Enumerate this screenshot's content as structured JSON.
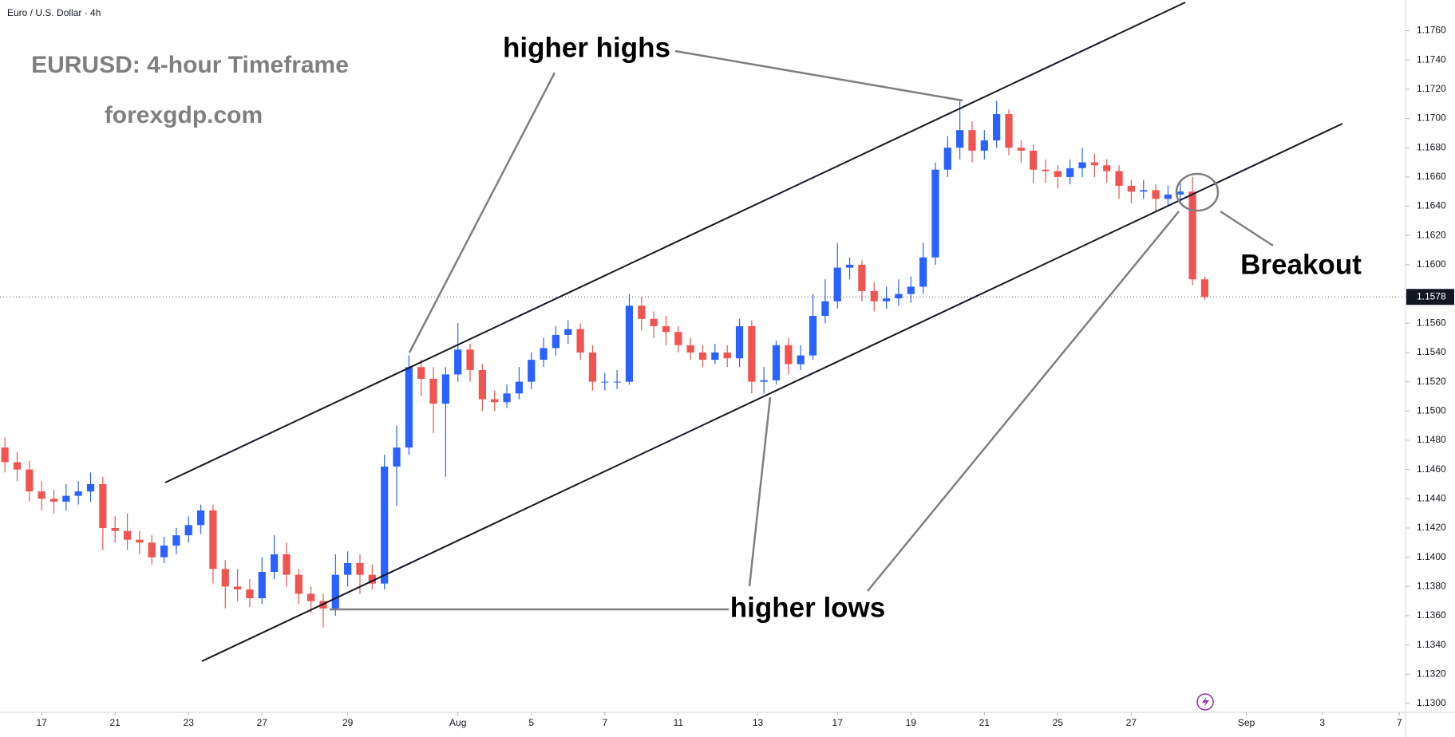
{
  "header": {
    "symbol": "Euro / U.S. Dollar · 4h"
  },
  "chart_data": {
    "type": "candlestick",
    "title": "EURUSD: 4-hour Timeframe",
    "subtitle": "forexgdp.com",
    "annotations": [
      "higher highs",
      "higher lows",
      "Breakout"
    ],
    "up_color": "#2962ff",
    "down_color": "#f05350",
    "last_price": 1.1578,
    "x": [
      0,
      1,
      2,
      3,
      4,
      5,
      6,
      7,
      8,
      9,
      10,
      11,
      12,
      13,
      14,
      15,
      16,
      17,
      18,
      19,
      20,
      21,
      22,
      23,
      24,
      25,
      26,
      27,
      28,
      29,
      30,
      31,
      32,
      33,
      34,
      35,
      36,
      37,
      38,
      39,
      40,
      41,
      42,
      43,
      44,
      45,
      46,
      47,
      48,
      49,
      50,
      51,
      52,
      53,
      54,
      55,
      56,
      57,
      58,
      59,
      60,
      61,
      62,
      63,
      64,
      65,
      66,
      67,
      68,
      69,
      70,
      71,
      72,
      73,
      74,
      75,
      76,
      77,
      78,
      79,
      80,
      81,
      82,
      83,
      84,
      85,
      86,
      87,
      88,
      89,
      90,
      91,
      92,
      93,
      94,
      95,
      96,
      97,
      98
    ],
    "open": [
      1.1475,
      1.1465,
      1.146,
      1.1445,
      1.144,
      1.1438,
      1.1442,
      1.1445,
      1.145,
      1.142,
      1.1418,
      1.1412,
      1.141,
      1.14,
      1.1408,
      1.1415,
      1.1422,
      1.1432,
      1.1392,
      1.138,
      1.1378,
      1.1372,
      1.139,
      1.1402,
      1.1388,
      1.1375,
      1.137,
      1.1365,
      1.1388,
      1.1396,
      1.1388,
      1.1382,
      1.1462,
      1.1475,
      1.153,
      1.1522,
      1.1505,
      1.1525,
      1.1542,
      1.1528,
      1.1508,
      1.1506,
      1.1512,
      1.152,
      1.1535,
      1.1543,
      1.1552,
      1.1556,
      1.154,
      1.152,
      1.152,
      1.152,
      1.1572,
      1.1563,
      1.1558,
      1.1554,
      1.1545,
      1.154,
      1.1535,
      1.154,
      1.1536,
      1.1558,
      1.152,
      1.1521,
      1.1545,
      1.1532,
      1.1538,
      1.1565,
      1.1575,
      1.1598,
      1.16,
      1.1582,
      1.1575,
      1.1577,
      1.158,
      1.1585,
      1.1605,
      1.1665,
      1.168,
      1.1692,
      1.1678,
      1.1685,
      1.1703,
      1.168,
      1.1678,
      1.1665,
      1.1664,
      1.166,
      1.1666,
      1.167,
      1.1668,
      1.1664,
      1.1654,
      1.165,
      1.1651,
      1.1645,
      1.1648,
      1.165,
      1.159
    ],
    "high": [
      1.1482,
      1.1472,
      1.1466,
      1.1452,
      1.1446,
      1.145,
      1.1452,
      1.1458,
      1.1455,
      1.1428,
      1.143,
      1.1418,
      1.1415,
      1.1414,
      1.142,
      1.1428,
      1.1436,
      1.1436,
      1.1398,
      1.1392,
      1.1385,
      1.14,
      1.1415,
      1.141,
      1.1392,
      1.138,
      1.1375,
      1.1402,
      1.1404,
      1.1402,
      1.1395,
      1.147,
      1.149,
      1.1538,
      1.1535,
      1.153,
      1.153,
      1.156,
      1.1546,
      1.1532,
      1.1514,
      1.1518,
      1.153,
      1.154,
      1.155,
      1.1558,
      1.1562,
      1.156,
      1.1545,
      1.1526,
      1.1528,
      1.158,
      1.1578,
      1.1568,
      1.1565,
      1.1558,
      1.155,
      1.1545,
      1.1546,
      1.1545,
      1.1563,
      1.1562,
      1.153,
      1.1548,
      1.155,
      1.1545,
      1.158,
      1.159,
      1.1615,
      1.1605,
      1.1603,
      1.1588,
      1.1585,
      1.159,
      1.1592,
      1.1615,
      1.167,
      1.1688,
      1.1712,
      1.1698,
      1.1692,
      1.1712,
      1.1706,
      1.1685,
      1.1682,
      1.1672,
      1.1668,
      1.1672,
      1.168,
      1.1676,
      1.1672,
      1.1668,
      1.1658,
      1.1658,
      1.1655,
      1.1654,
      1.1658,
      1.166,
      1.1592
    ],
    "low": [
      1.1458,
      1.1452,
      1.1438,
      1.1432,
      1.143,
      1.1432,
      1.1436,
      1.1438,
      1.1405,
      1.141,
      1.1405,
      1.1402,
      1.1395,
      1.1396,
      1.1402,
      1.141,
      1.1416,
      1.1382,
      1.1365,
      1.137,
      1.1366,
      1.1368,
      1.1385,
      1.138,
      1.1368,
      1.1362,
      1.1352,
      1.136,
      1.138,
      1.1375,
      1.1378,
      1.1378,
      1.1435,
      1.147,
      1.151,
      1.1485,
      1.1455,
      1.152,
      1.152,
      1.15,
      1.15,
      1.1502,
      1.1508,
      1.1515,
      1.153,
      1.1538,
      1.1546,
      1.1535,
      1.1514,
      1.1514,
      1.1515,
      1.1518,
      1.1555,
      1.155,
      1.1545,
      1.154,
      1.1535,
      1.153,
      1.1532,
      1.153,
      1.153,
      1.1512,
      1.1512,
      1.1518,
      1.1525,
      1.1528,
      1.1535,
      1.156,
      1.157,
      1.159,
      1.1575,
      1.1568,
      1.157,
      1.1572,
      1.1574,
      1.158,
      1.16,
      1.166,
      1.1672,
      1.167,
      1.1672,
      1.168,
      1.1675,
      1.167,
      1.1656,
      1.1656,
      1.1652,
      1.1655,
      1.166,
      1.166,
      1.1656,
      1.1645,
      1.1642,
      1.1645,
      1.1636,
      1.164,
      1.1642,
      1.1586,
      1.1576
    ],
    "close": [
      1.1465,
      1.146,
      1.1445,
      1.144,
      1.1438,
      1.1442,
      1.1445,
      1.145,
      1.142,
      1.1418,
      1.1412,
      1.141,
      1.14,
      1.1408,
      1.1415,
      1.1422,
      1.1432,
      1.1392,
      1.138,
      1.1378,
      1.1372,
      1.139,
      1.1402,
      1.1388,
      1.1375,
      1.137,
      1.1365,
      1.1388,
      1.1396,
      1.1388,
      1.1382,
      1.1462,
      1.1475,
      1.153,
      1.1522,
      1.1505,
      1.1525,
      1.1542,
      1.1528,
      1.1508,
      1.1506,
      1.1512,
      1.152,
      1.1535,
      1.1543,
      1.1552,
      1.1556,
      1.154,
      1.152,
      1.152,
      1.152,
      1.1572,
      1.1563,
      1.1558,
      1.1554,
      1.1545,
      1.154,
      1.1535,
      1.154,
      1.1536,
      1.1558,
      1.152,
      1.1521,
      1.1545,
      1.1532,
      1.1538,
      1.1565,
      1.1575,
      1.1598,
      1.16,
      1.1582,
      1.1575,
      1.1577,
      1.158,
      1.1585,
      1.1605,
      1.1665,
      1.168,
      1.1692,
      1.1678,
      1.1685,
      1.1703,
      1.168,
      1.1678,
      1.1665,
      1.1664,
      1.166,
      1.1666,
      1.167,
      1.1668,
      1.1664,
      1.1654,
      1.165,
      1.1651,
      1.1645,
      1.1648,
      1.165,
      1.159,
      1.1578
    ],
    "xlim": [
      -0.4,
      114.4
    ],
    "xticks": [
      {
        "value": 3,
        "label": "17"
      },
      {
        "value": 9,
        "label": "21"
      },
      {
        "value": 15,
        "label": "23"
      },
      {
        "value": 21,
        "label": "27"
      },
      {
        "value": 28,
        "label": "29"
      },
      {
        "value": 37,
        "label": "Aug"
      },
      {
        "value": 43,
        "label": "5"
      },
      {
        "value": 49,
        "label": "7"
      },
      {
        "value": 55,
        "label": "11"
      },
      {
        "value": 61.5,
        "label": "13"
      },
      {
        "value": 68,
        "label": "17"
      },
      {
        "value": 74,
        "label": "19"
      },
      {
        "value": 80,
        "label": "21"
      },
      {
        "value": 86,
        "label": "25"
      },
      {
        "value": 92,
        "label": "27"
      },
      {
        "value": 101.4,
        "label": "Sep"
      },
      {
        "value": 107.6,
        "label": "3"
      },
      {
        "value": 113.9,
        "label": "7"
      }
    ],
    "ylim": [
      1.1294,
      1.1781
    ],
    "yticks": [
      {
        "value": 1.13,
        "label": "1.1300"
      },
      {
        "value": 1.132,
        "label": "1.1320"
      },
      {
        "value": 1.134,
        "label": "1.1340"
      },
      {
        "value": 1.136,
        "label": "1.1360"
      },
      {
        "value": 1.138,
        "label": "1.1380"
      },
      {
        "value": 1.14,
        "label": "1.1400"
      },
      {
        "value": 1.142,
        "label": "1.1420"
      },
      {
        "value": 1.144,
        "label": "1.1440"
      },
      {
        "value": 1.146,
        "label": "1.1460"
      },
      {
        "value": 1.148,
        "label": "1.1480"
      },
      {
        "value": 1.15,
        "label": "1.1500"
      },
      {
        "value": 1.152,
        "label": "1.1520"
      },
      {
        "value": 1.154,
        "label": "1.1540"
      },
      {
        "value": 1.156,
        "label": "1.1560"
      },
      {
        "value": 1.158,
        "label": "1.1580"
      },
      {
        "value": 1.16,
        "label": "1.1600"
      },
      {
        "value": 1.162,
        "label": "1.1620"
      },
      {
        "value": 1.164,
        "label": "1.1640"
      },
      {
        "value": 1.166,
        "label": "1.1660"
      },
      {
        "value": 1.168,
        "label": "1.1680"
      },
      {
        "value": 1.17,
        "label": "1.1700"
      },
      {
        "value": 1.172,
        "label": "1.1720"
      },
      {
        "value": 1.174,
        "label": "1.1740"
      },
      {
        "value": 1.176,
        "label": "1.1760"
      }
    ]
  }
}
